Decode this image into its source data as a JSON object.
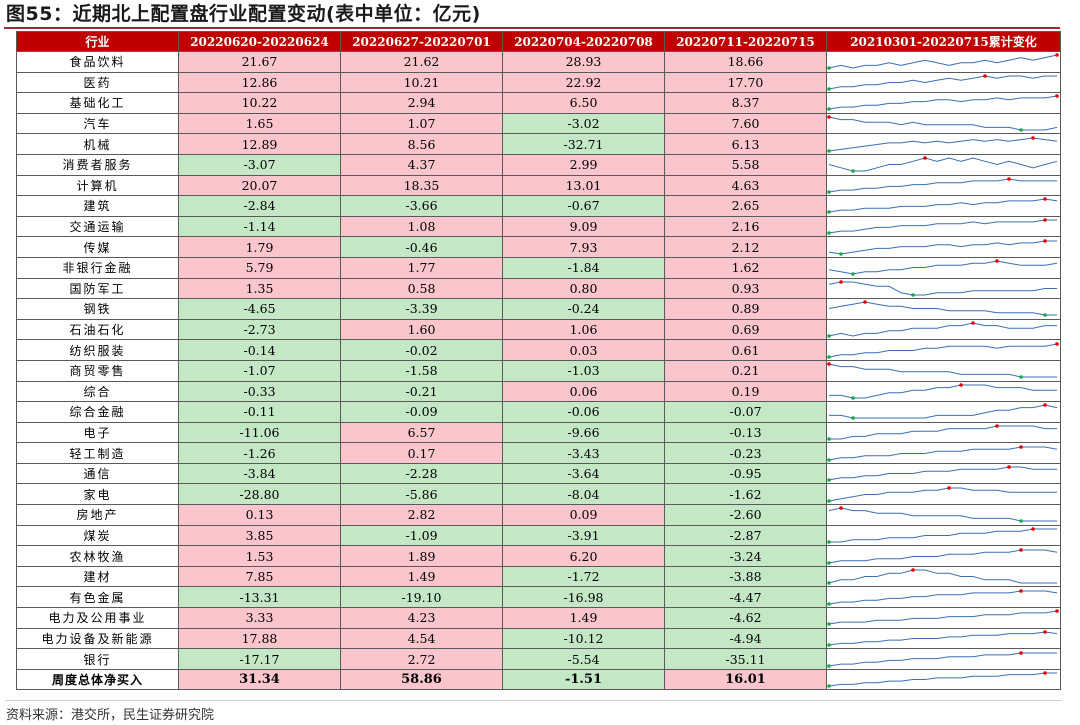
{
  "title": "图55：近期北上配置盘行业配置变动(表中单位：亿元)",
  "source": "资料来源：港交所，民生证券研究院",
  "colors": {
    "header_bg": "#c00000",
    "positive_bg": "#fac5cb",
    "negative_bg": "#c4e8c6",
    "line": "#3a6fb5",
    "max_marker": "#e60000",
    "min_marker": "#1aa64a"
  },
  "chart_data": {
    "type": "table",
    "columns": [
      "行业",
      "20220620-20220624",
      "20220627-20220701",
      "20220704-20220708",
      "20220711-20220715",
      "20210301-20220715累计变化"
    ],
    "rows": [
      {
        "name": "食品饮料",
        "values": [
          "21.67",
          "21.62",
          "28.93",
          "18.66"
        ],
        "trend": [
          3,
          4,
          3,
          4,
          4,
          5,
          4,
          5,
          6,
          5,
          4,
          5,
          5,
          6,
          5,
          6,
          7,
          6,
          7,
          8
        ]
      },
      {
        "name": "医药",
        "values": [
          "12.86",
          "10.21",
          "22.92",
          "17.70"
        ],
        "trend": [
          2,
          3,
          3,
          4,
          4,
          5,
          5,
          6,
          5,
          6,
          7,
          6,
          7,
          8,
          7,
          8,
          8,
          7,
          8,
          8
        ]
      },
      {
        "name": "基础化工",
        "values": [
          "10.22",
          "2.94",
          "6.50",
          "8.37"
        ],
        "trend": [
          2,
          3,
          3,
          4,
          4,
          5,
          5,
          6,
          6,
          7,
          7,
          6,
          7,
          7,
          8,
          7,
          8,
          8,
          8,
          9
        ]
      },
      {
        "name": "汽车",
        "values": [
          "1.65",
          "1.07",
          "-3.02",
          "7.60"
        ],
        "trend": [
          8,
          7,
          7,
          6,
          6,
          6,
          5,
          6,
          5,
          5,
          5,
          5,
          5,
          4,
          4,
          4,
          3,
          3,
          3,
          4
        ]
      },
      {
        "name": "机械",
        "values": [
          "12.89",
          "8.56",
          "-32.71",
          "6.13"
        ],
        "trend": [
          3,
          4,
          5,
          6,
          7,
          8,
          8,
          9,
          8,
          9,
          8,
          9,
          10,
          9,
          10,
          9,
          10,
          11,
          10,
          9
        ]
      },
      {
        "name": "消费者服务",
        "values": [
          "-3.07",
          "4.37",
          "2.99",
          "5.58"
        ],
        "trend": [
          5,
          4,
          3,
          3,
          4,
          5,
          5,
          6,
          7,
          6,
          7,
          6,
          7,
          6,
          5,
          6,
          5,
          4,
          5,
          6
        ]
      },
      {
        "name": "计算机",
        "values": [
          "20.07",
          "18.35",
          "13.01",
          "4.63"
        ],
        "trend": [
          2,
          3,
          3,
          4,
          4,
          5,
          5,
          6,
          6,
          7,
          7,
          7,
          8,
          8,
          8,
          9,
          8,
          8,
          8,
          8
        ]
      },
      {
        "name": "建筑",
        "values": [
          "-2.84",
          "-3.66",
          "-0.67",
          "2.65"
        ],
        "trend": [
          2,
          3,
          3,
          4,
          4,
          4,
          5,
          5,
          5,
          6,
          6,
          7,
          6,
          7,
          7,
          8,
          8,
          8,
          9,
          8
        ]
      },
      {
        "name": "交通运输",
        "values": [
          "-1.14",
          "1.08",
          "9.09",
          "2.16"
        ],
        "trend": [
          2,
          3,
          3,
          4,
          5,
          5,
          6,
          6,
          6,
          7,
          7,
          7,
          8,
          7,
          8,
          8,
          8,
          8,
          9,
          9
        ]
      },
      {
        "name": "传媒",
        "values": [
          "1.79",
          "-0.46",
          "7.93",
          "2.12"
        ],
        "trend": [
          3,
          2,
          3,
          4,
          5,
          5,
          6,
          6,
          6,
          7,
          7,
          6,
          7,
          7,
          8,
          7,
          8,
          8,
          9,
          9
        ]
      },
      {
        "name": "非银行金融",
        "values": [
          "5.79",
          "1.77",
          "-1.84",
          "1.62"
        ],
        "trend": [
          4,
          3,
          2,
          3,
          3,
          4,
          4,
          5,
          5,
          6,
          6,
          6,
          7,
          7,
          8,
          7,
          6,
          6,
          6,
          7
        ]
      },
      {
        "name": "国防军工",
        "values": [
          "1.35",
          "0.58",
          "0.80",
          "0.93"
        ],
        "trend": [
          8,
          9,
          9,
          8,
          7,
          7,
          4,
          3,
          3,
          4,
          4,
          4,
          5,
          5,
          5,
          5,
          5,
          5,
          6,
          6
        ]
      },
      {
        "name": "钢铁",
        "values": [
          "-4.65",
          "-3.39",
          "-0.24",
          "0.89"
        ],
        "trend": [
          5,
          6,
          7,
          8,
          7,
          6,
          6,
          5,
          5,
          5,
          4,
          4,
          4,
          4,
          3,
          3,
          3,
          3,
          2,
          2
        ]
      },
      {
        "name": "石油石化",
        "values": [
          "-2.73",
          "1.60",
          "1.06",
          "0.69"
        ],
        "trend": [
          3,
          4,
          3,
          4,
          4,
          5,
          5,
          6,
          6,
          6,
          7,
          7,
          8,
          7,
          7,
          6,
          6,
          6,
          7,
          7
        ]
      },
      {
        "name": "纺织服装",
        "values": [
          "-0.14",
          "-0.02",
          "0.03",
          "0.61"
        ],
        "trend": [
          2,
          3,
          3,
          4,
          4,
          5,
          5,
          5,
          6,
          6,
          7,
          7,
          7,
          7,
          6,
          7,
          7,
          7,
          7,
          8
        ]
      },
      {
        "name": "商贸零售",
        "values": [
          "-1.07",
          "-1.58",
          "-1.03",
          "0.21"
        ],
        "trend": [
          8,
          7,
          7,
          6,
          6,
          6,
          5,
          5,
          5,
          5,
          5,
          4,
          4,
          4,
          4,
          4,
          3,
          3,
          3,
          3
        ]
      },
      {
        "name": "综合",
        "values": [
          "-0.33",
          "-0.21",
          "0.06",
          "0.19"
        ],
        "trend": [
          3,
          3,
          2,
          2,
          3,
          4,
          4,
          5,
          5,
          6,
          6,
          7,
          7,
          7,
          6,
          6,
          6,
          5,
          5,
          5
        ]
      },
      {
        "name": "综合金融",
        "values": [
          "-0.11",
          "-0.09",
          "-0.06",
          "-0.07"
        ],
        "trend": [
          4,
          4,
          3,
          3,
          3,
          3,
          3,
          3,
          3,
          4,
          4,
          4,
          4,
          5,
          6,
          6,
          7,
          7,
          8,
          7
        ]
      },
      {
        "name": "电子",
        "values": [
          "-11.06",
          "6.57",
          "-9.66",
          "-0.13"
        ],
        "trend": [
          3,
          3,
          4,
          4,
          5,
          5,
          5,
          6,
          6,
          6,
          7,
          7,
          7,
          7,
          8,
          8,
          8,
          8,
          7,
          7
        ]
      },
      {
        "name": "轻工制造",
        "values": [
          "-1.26",
          "0.17",
          "-3.43",
          "-0.23"
        ],
        "trend": [
          2,
          3,
          3,
          4,
          4,
          4,
          5,
          5,
          5,
          6,
          6,
          6,
          7,
          7,
          7,
          7,
          8,
          8,
          8,
          7
        ]
      },
      {
        "name": "通信",
        "values": [
          "-3.84",
          "-2.28",
          "-3.64",
          "-0.95"
        ],
        "trend": [
          2,
          3,
          3,
          4,
          4,
          5,
          5,
          5,
          6,
          6,
          6,
          7,
          7,
          7,
          7,
          8,
          8,
          7,
          7,
          7
        ]
      },
      {
        "name": "家电",
        "values": [
          "-28.80",
          "-5.86",
          "-8.04",
          "-1.62"
        ],
        "trend": [
          2,
          3,
          4,
          5,
          5,
          6,
          6,
          6,
          7,
          7,
          8,
          8,
          7,
          7,
          7,
          6,
          6,
          6,
          6,
          6
        ]
      },
      {
        "name": "房地产",
        "values": [
          "0.13",
          "2.82",
          "0.09",
          "-2.60"
        ],
        "trend": [
          7,
          8,
          7,
          7,
          6,
          6,
          6,
          5,
          5,
          5,
          5,
          5,
          4,
          4,
          4,
          4,
          3,
          3,
          3,
          3
        ]
      },
      {
        "name": "煤炭",
        "values": [
          "3.85",
          "-1.09",
          "-3.91",
          "-2.87"
        ],
        "trend": [
          2,
          2,
          3,
          3,
          3,
          4,
          4,
          4,
          5,
          5,
          5,
          6,
          6,
          6,
          7,
          7,
          7,
          8,
          8,
          8
        ]
      },
      {
        "name": "农林牧渔",
        "values": [
          "1.53",
          "1.89",
          "6.20",
          "-3.24"
        ],
        "trend": [
          2,
          3,
          3,
          3,
          4,
          4,
          4,
          5,
          5,
          5,
          6,
          6,
          6,
          7,
          7,
          7,
          8,
          8,
          8,
          7
        ]
      },
      {
        "name": "建材",
        "values": [
          "7.85",
          "1.49",
          "-1.72",
          "-3.88"
        ],
        "trend": [
          3,
          4,
          4,
          5,
          5,
          6,
          6,
          7,
          7,
          6,
          6,
          5,
          5,
          4,
          4,
          4,
          3,
          3,
          3,
          3
        ]
      },
      {
        "name": "有色金属",
        "values": [
          "-13.31",
          "-19.10",
          "-16.98",
          "-4.47"
        ],
        "trend": [
          2,
          3,
          3,
          4,
          4,
          5,
          5,
          6,
          6,
          7,
          7,
          7,
          8,
          8,
          8,
          8,
          9,
          9,
          9,
          8
        ]
      },
      {
        "name": "电力及公用事业",
        "values": [
          "3.33",
          "4.23",
          "1.49",
          "-4.62"
        ],
        "trend": [
          2,
          3,
          3,
          3,
          4,
          4,
          4,
          5,
          5,
          5,
          6,
          6,
          6,
          7,
          7,
          7,
          8,
          8,
          8,
          9
        ]
      },
      {
        "name": "电力设备及新能源",
        "values": [
          "17.88",
          "4.54",
          "-10.12",
          "-4.94"
        ],
        "trend": [
          2,
          3,
          3,
          4,
          4,
          5,
          5,
          6,
          6,
          6,
          7,
          7,
          8,
          8,
          8,
          9,
          9,
          9,
          10,
          9
        ]
      },
      {
        "name": "银行",
        "values": [
          "-17.17",
          "2.72",
          "-5.54",
          "-35.11"
        ],
        "trend": [
          2,
          3,
          3,
          4,
          4,
          5,
          5,
          6,
          6,
          6,
          7,
          7,
          7,
          8,
          8,
          8,
          9,
          9,
          9,
          9
        ]
      }
    ],
    "total": {
      "name": "周度总体净买入",
      "values": [
        "31.34",
        "58.86",
        "-1.51",
        "16.01"
      ],
      "trend": [
        2,
        3,
        3,
        4,
        4,
        5,
        5,
        6,
        6,
        7,
        7,
        7,
        8,
        8,
        8,
        9,
        9,
        9,
        10,
        10
      ]
    }
  }
}
